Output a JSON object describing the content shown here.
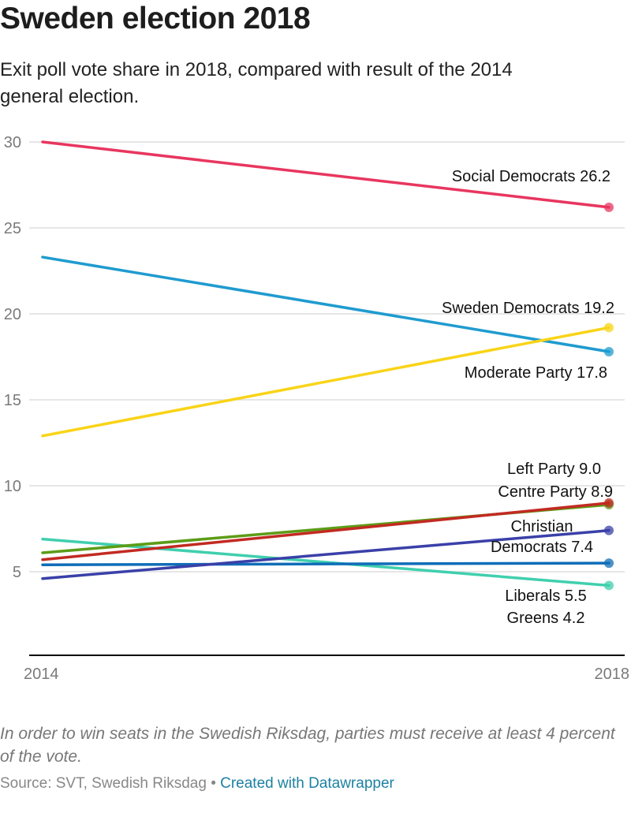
{
  "header": {
    "title": "Sweden election 2018",
    "subtitle": "Exit poll vote share in 2018, compared with result of the 2014 general election."
  },
  "footer": {
    "notes": "In order to win seats in the Swedish Riksdag, parties must receive at least 4 percent of the vote.",
    "source_prefix": "Source: SVT, Swedish Riksdag",
    "separator": "•",
    "credit_link": "Created with Datawrapper"
  },
  "chart_data": {
    "type": "line",
    "title": "Sweden election 2018",
    "subtitle": "Exit poll vote share in 2018, compared with result of the 2014 general election.",
    "x": [
      "2014",
      "2018"
    ],
    "xlabel": "",
    "ylabel": "",
    "ylim": [
      0,
      30
    ],
    "yticks": [
      5,
      10,
      15,
      20,
      25,
      30
    ],
    "grid": true,
    "legend": "direct-labels-right",
    "series": [
      {
        "name": "Social Democrats",
        "color": "#e8365f",
        "values": [
          30.0,
          26.2
        ],
        "label": "Social Democrats 26.2",
        "label_lines": [
          "Social Democrats 26.2"
        ]
      },
      {
        "name": "Moderate Party",
        "color": "#1f9bcf",
        "values": [
          23.3,
          17.8
        ],
        "label": "Moderate Party 17.8",
        "label_lines": [
          "Moderate Party 17.8"
        ]
      },
      {
        "name": "Sweden Democrats",
        "color": "#f9d418",
        "values": [
          12.9,
          19.2
        ],
        "label": "Sweden Democrats 19.2",
        "label_lines": [
          "Sweden Democrats 19.2"
        ]
      },
      {
        "name": "Greens",
        "color": "#40cfae",
        "values": [
          6.9,
          4.2
        ],
        "label": "Greens 4.2",
        "label_lines": [
          "Greens 4.2"
        ]
      },
      {
        "name": "Centre Party",
        "color": "#5c9c17",
        "values": [
          6.1,
          8.9
        ],
        "label": "Centre Party 8.9",
        "label_lines": [
          "Centre Party 8.9"
        ]
      },
      {
        "name": "Left Party",
        "color": "#c22a22",
        "values": [
          5.7,
          9.0
        ],
        "label": "Left Party 9.0",
        "label_lines": [
          "Left Party 9.0"
        ]
      },
      {
        "name": "Liberals",
        "color": "#0f6db8",
        "values": [
          5.4,
          5.5
        ],
        "label": "Liberals 5.5",
        "label_lines": [
          "Liberals 5.5"
        ]
      },
      {
        "name": "Christian Democrats",
        "color": "#3a40a8",
        "values": [
          4.6,
          7.4
        ],
        "label": "Christian Democrats 7.4",
        "label_lines": [
          "Christian",
          "Democrats 7.4"
        ]
      }
    ]
  }
}
